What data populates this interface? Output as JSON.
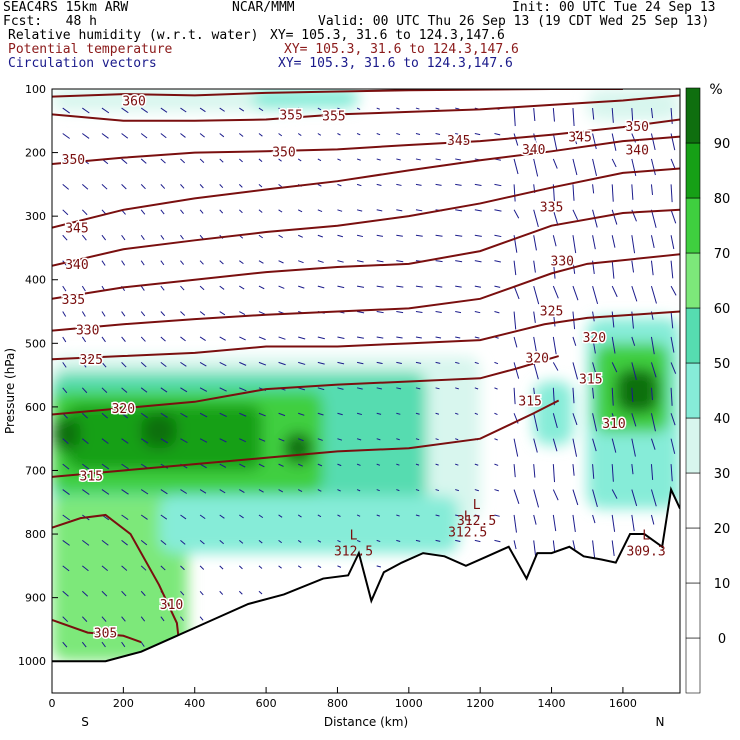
{
  "header": {
    "model": "SEAC4RS 15km ARW",
    "org": "NCAR/MMM",
    "init": "Init: 00 UTC Tue 24 Sep 13",
    "fcst": "Fcst:   48 h",
    "valid": "Valid: 00 UTC Thu 26 Sep 13 (19 CDT Wed 25 Sep 13)",
    "fields": [
      {
        "name": "Relative humidity (w.r.t. water)",
        "xy": "XY= 105.3, 31.6 to 124.3,147.6",
        "color": "#000000"
      },
      {
        "name": "Potential temperature",
        "xy": "XY= 105.3, 31.6 to 124.3,147.6",
        "color": "#8b1a1a"
      },
      {
        "name": "Circulation vectors",
        "xy": "XY= 105.3, 31.6 to 124.3,147.6",
        "color": "#1a1a8b"
      }
    ]
  },
  "colors": {
    "theta": "#7a0f0f",
    "vectors": "#1c1c8c",
    "terrain": "#000000",
    "rh_bins": [
      "#ffffff",
      "#ffffff",
      "#ffffff",
      "#d8f6ee",
      "#86ecd8",
      "#56dcb0",
      "#7de87a",
      "#3fcf3f",
      "#16a016",
      "#0f6f0f"
    ]
  },
  "chart_data": {
    "type": "heatmap",
    "xlabel": "Distance (km)",
    "ylabel": "Pressure (hPa)",
    "xlim": [
      0,
      1760
    ],
    "ylim": [
      1050,
      100
    ],
    "x_ticks": [
      0,
      200,
      400,
      600,
      800,
      1000,
      1200,
      1400,
      1600
    ],
    "y_ticks": [
      100,
      200,
      300,
      400,
      500,
      600,
      700,
      800,
      900,
      1000
    ],
    "end_labels": {
      "left": "S",
      "right": "N"
    },
    "colorbar": {
      "unit": "%",
      "ticks": [
        0,
        10,
        20,
        30,
        40,
        50,
        60,
        70,
        80,
        90
      ],
      "bins": [
        -10,
        0,
        10,
        20,
        30,
        40,
        50,
        60,
        70,
        80,
        90,
        100
      ]
    },
    "terrain_surface_hpa": [
      [
        0,
        1000
      ],
      [
        150,
        1000
      ],
      [
        250,
        985
      ],
      [
        350,
        960
      ],
      [
        450,
        935
      ],
      [
        550,
        910
      ],
      [
        650,
        895
      ],
      [
        760,
        870
      ],
      [
        830,
        865
      ],
      [
        860,
        830
      ],
      [
        895,
        905
      ],
      [
        930,
        860
      ],
      [
        980,
        845
      ],
      [
        1040,
        830
      ],
      [
        1100,
        835
      ],
      [
        1160,
        850
      ],
      [
        1220,
        835
      ],
      [
        1280,
        820
      ],
      [
        1330,
        870
      ],
      [
        1360,
        830
      ],
      [
        1400,
        830
      ],
      [
        1450,
        820
      ],
      [
        1490,
        835
      ],
      [
        1540,
        840
      ],
      [
        1580,
        845
      ],
      [
        1620,
        800
      ],
      [
        1660,
        800
      ],
      [
        1710,
        820
      ],
      [
        1735,
        730
      ],
      [
        1760,
        760
      ]
    ],
    "theta_contours": [
      {
        "level": 305,
        "label": "305",
        "points": [
          [
            0,
            935
          ],
          [
            100,
            955
          ],
          [
            200,
            960
          ],
          [
            250,
            970
          ]
        ]
      },
      {
        "level": 310,
        "label": "310",
        "points": [
          [
            0,
            790
          ],
          [
            80,
            775
          ],
          [
            150,
            770
          ],
          [
            220,
            800
          ],
          [
            300,
            880
          ],
          [
            350,
            940
          ],
          [
            360,
            990
          ]
        ]
      },
      {
        "level": 315,
        "label": "315",
        "points": [
          [
            0,
            710
          ],
          [
            200,
            700
          ],
          [
            400,
            690
          ],
          [
            600,
            680
          ],
          [
            800,
            670
          ],
          [
            1000,
            665
          ],
          [
            1200,
            650
          ],
          [
            1350,
            610
          ],
          [
            1420,
            590
          ]
        ]
      },
      {
        "level": 320,
        "label": "320",
        "points": [
          [
            0,
            612
          ],
          [
            200,
            602
          ],
          [
            400,
            592
          ],
          [
            600,
            572
          ],
          [
            800,
            565
          ],
          [
            1000,
            560
          ],
          [
            1200,
            555
          ],
          [
            1300,
            540
          ],
          [
            1420,
            520
          ]
        ]
      },
      {
        "level": 325,
        "label": "325",
        "points": [
          [
            0,
            525
          ],
          [
            200,
            520
          ],
          [
            400,
            515
          ],
          [
            600,
            505
          ],
          [
            800,
            505
          ],
          [
            1000,
            500
          ],
          [
            1200,
            495
          ],
          [
            1380,
            470
          ],
          [
            1500,
            460
          ],
          [
            1760,
            450
          ]
        ]
      },
      {
        "level": 330,
        "label": "330",
        "points": [
          [
            0,
            480
          ],
          [
            200,
            470
          ],
          [
            400,
            462
          ],
          [
            600,
            455
          ],
          [
            800,
            450
          ],
          [
            1000,
            445
          ],
          [
            1200,
            430
          ],
          [
            1400,
            390
          ],
          [
            1500,
            375
          ],
          [
            1760,
            360
          ]
        ]
      },
      {
        "level": 335,
        "label": "335",
        "points": [
          [
            0,
            430
          ],
          [
            200,
            412
          ],
          [
            400,
            400
          ],
          [
            600,
            388
          ],
          [
            800,
            380
          ],
          [
            1000,
            375
          ],
          [
            1200,
            355
          ],
          [
            1400,
            315
          ],
          [
            1600,
            295
          ],
          [
            1760,
            290
          ]
        ]
      },
      {
        "level": 340,
        "label": "340",
        "points": [
          [
            0,
            378
          ],
          [
            200,
            352
          ],
          [
            400,
            338
          ],
          [
            600,
            325
          ],
          [
            800,
            315
          ],
          [
            1000,
            300
          ],
          [
            1200,
            280
          ],
          [
            1400,
            255
          ],
          [
            1600,
            232
          ],
          [
            1760,
            225
          ]
        ]
      },
      {
        "level": 345,
        "label": "345",
        "points": [
          [
            0,
            318
          ],
          [
            200,
            290
          ],
          [
            400,
            272
          ],
          [
            600,
            258
          ],
          [
            800,
            245
          ],
          [
            1000,
            228
          ],
          [
            1200,
            212
          ],
          [
            1400,
            198
          ],
          [
            1600,
            182
          ],
          [
            1760,
            175
          ]
        ]
      },
      {
        "level": 350,
        "label": "350",
        "points": [
          [
            0,
            218
          ],
          [
            200,
            208
          ],
          [
            400,
            200
          ],
          [
            600,
            198
          ],
          [
            800,
            195
          ],
          [
            1000,
            188
          ],
          [
            1200,
            182
          ],
          [
            1400,
            172
          ],
          [
            1600,
            160
          ],
          [
            1760,
            148
          ]
        ]
      },
      {
        "level": 355,
        "label": "355",
        "points": [
          [
            0,
            140
          ],
          [
            200,
            150
          ],
          [
            400,
            150
          ],
          [
            600,
            148
          ],
          [
            800,
            140
          ],
          [
            1000,
            136
          ],
          [
            1200,
            132
          ],
          [
            1400,
            125
          ],
          [
            1600,
            118
          ],
          [
            1760,
            110
          ]
        ]
      },
      {
        "level": 360,
        "label": "360",
        "points": [
          [
            0,
            112
          ],
          [
            200,
            108
          ],
          [
            400,
            110
          ],
          [
            600,
            106
          ],
          [
            800,
            104
          ],
          [
            1000,
            102
          ],
          [
            1200,
            101
          ],
          [
            1400,
            100
          ],
          [
            1600,
            100
          ]
        ]
      }
    ],
    "theta_labels": [
      {
        "text": "360",
        "x": 230,
        "p": 118
      },
      {
        "text": "355",
        "x": 670,
        "p": 140
      },
      {
        "text": "355",
        "x": 790,
        "p": 142
      },
      {
        "text": "350",
        "x": 60,
        "p": 210
      },
      {
        "text": "350",
        "x": 650,
        "p": 198
      },
      {
        "text": "350",
        "x": 1640,
        "p": 158
      },
      {
        "text": "345",
        "x": 1140,
        "p": 180
      },
      {
        "text": "345",
        "x": 1480,
        "p": 175
      },
      {
        "text": "345",
        "x": 70,
        "p": 318
      },
      {
        "text": "340",
        "x": 1350,
        "p": 194
      },
      {
        "text": "340",
        "x": 1640,
        "p": 195
      },
      {
        "text": "340",
        "x": 70,
        "p": 375
      },
      {
        "text": "335",
        "x": 1400,
        "p": 285
      },
      {
        "text": "335",
        "x": 60,
        "p": 430
      },
      {
        "text": "330",
        "x": 1430,
        "p": 370
      },
      {
        "text": "330",
        "x": 100,
        "p": 478
      },
      {
        "text": "325",
        "x": 1400,
        "p": 448
      },
      {
        "text": "325",
        "x": 110,
        "p": 525
      },
      {
        "text": "320",
        "x": 1520,
        "p": 490
      },
      {
        "text": "320",
        "x": 1360,
        "p": 522
      },
      {
        "text": "320",
        "x": 200,
        "p": 602
      },
      {
        "text": "315",
        "x": 1510,
        "p": 555
      },
      {
        "text": "315",
        "x": 1340,
        "p": 590
      },
      {
        "text": "315",
        "x": 110,
        "p": 708
      },
      {
        "text": "310",
        "x": 1575,
        "p": 625
      },
      {
        "text": "310",
        "x": 335,
        "p": 910
      },
      {
        "text": "305",
        "x": 150,
        "p": 955
      }
    ],
    "lows": [
      {
        "marker": "L",
        "value": "312.5",
        "x": 1190,
        "p": 770
      },
      {
        "marker": "L",
        "value": "312.5",
        "x": 1165,
        "p": 788
      },
      {
        "marker": "L",
        "value": "312.5",
        "x": 845,
        "p": 818
      },
      {
        "marker": "L",
        "value": "309.3",
        "x": 1665,
        "p": 818
      }
    ],
    "rh_regions": [
      {
        "rh": 35,
        "x0": 0,
        "x1": 1200,
        "p0": 520,
        "p1": 780
      },
      {
        "rh": 55,
        "x0": 0,
        "x1": 1050,
        "p0": 545,
        "p1": 760
      },
      {
        "rh": 70,
        "x0": 0,
        "x1": 760,
        "p0": 575,
        "p1": 735
      },
      {
        "rh": 82,
        "x0": 40,
        "x1": 590,
        "p0": 595,
        "p1": 700
      },
      {
        "rh": 92,
        "x0": 0,
        "x1": 80,
        "p0": 615,
        "p1": 670
      },
      {
        "rh": 92,
        "x0": 250,
        "x1": 350,
        "p0": 610,
        "p1": 665
      },
      {
        "rh": 92,
        "x0": 650,
        "x1": 730,
        "p0": 640,
        "p1": 690
      },
      {
        "rh": 60,
        "x0": 0,
        "x1": 380,
        "p0": 740,
        "p1": 1000
      },
      {
        "rh": 40,
        "x0": 300,
        "x1": 1140,
        "p0": 740,
        "p1": 830
      },
      {
        "rh": 45,
        "x0": 1350,
        "x1": 1460,
        "p0": 560,
        "p1": 660
      },
      {
        "rh": 45,
        "x0": 1500,
        "x1": 1760,
        "p0": 460,
        "p1": 760
      },
      {
        "rh": 70,
        "x0": 1520,
        "x1": 1730,
        "p0": 500,
        "p1": 640
      },
      {
        "rh": 92,
        "x0": 1580,
        "x1": 1700,
        "p0": 540,
        "p1": 610
      },
      {
        "rh": 35,
        "x0": 0,
        "x1": 700,
        "p0": 100,
        "p1": 135
      },
      {
        "rh": 45,
        "x0": 560,
        "x1": 860,
        "p0": 100,
        "p1": 130
      },
      {
        "rh": 30,
        "x0": 1500,
        "x1": 1760,
        "p0": 100,
        "p1": 150
      }
    ]
  }
}
